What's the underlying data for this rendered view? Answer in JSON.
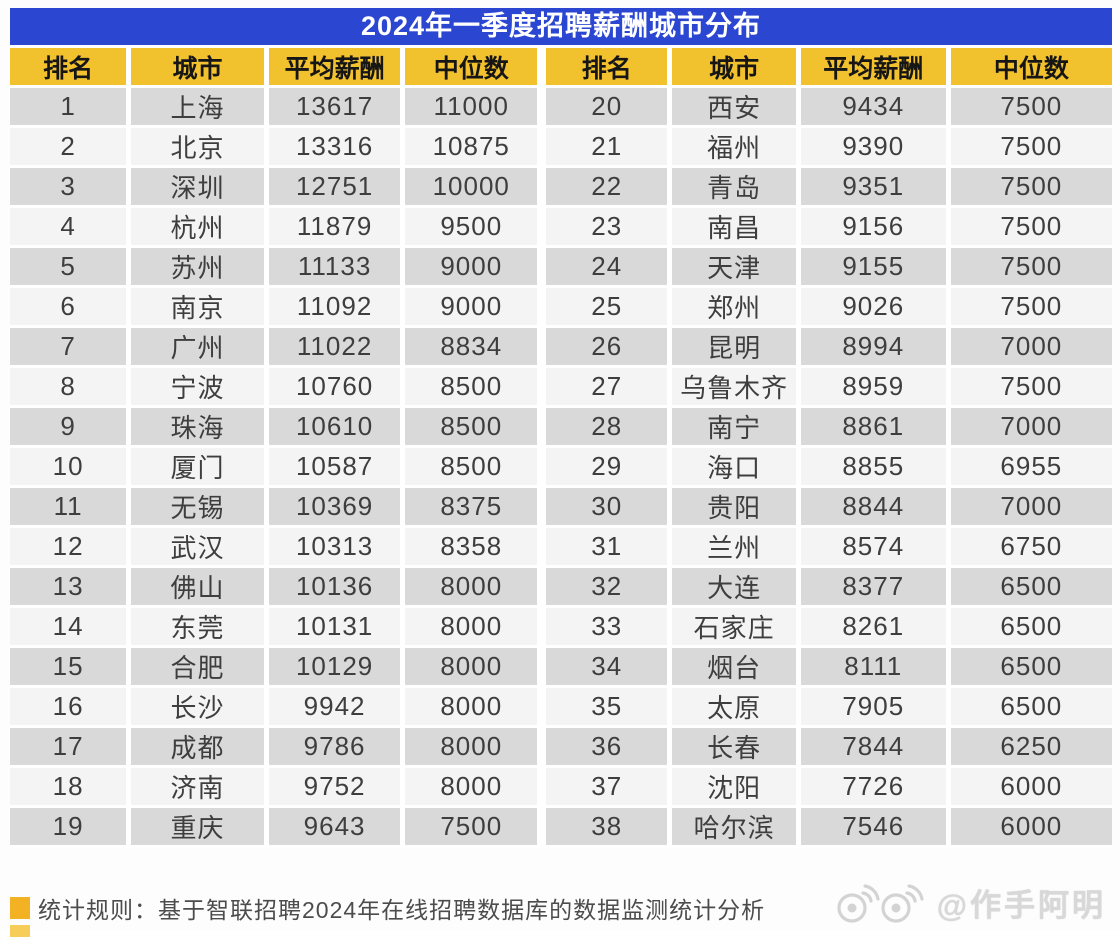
{
  "title": "2024年一季度招聘薪酬城市分布",
  "table": {
    "columns": [
      "排名",
      "城市",
      "平均薪酬",
      "中位数"
    ],
    "rows": [
      {
        "rank": "1",
        "city": "上海",
        "avg": "13617",
        "median": "11000"
      },
      {
        "rank": "2",
        "city": "北京",
        "avg": "13316",
        "median": "10875"
      },
      {
        "rank": "3",
        "city": "深圳",
        "avg": "12751",
        "median": "10000"
      },
      {
        "rank": "4",
        "city": "杭州",
        "avg": "11879",
        "median": "9500"
      },
      {
        "rank": "5",
        "city": "苏州",
        "avg": "11133",
        "median": "9000"
      },
      {
        "rank": "6",
        "city": "南京",
        "avg": "11092",
        "median": "9000"
      },
      {
        "rank": "7",
        "city": "广州",
        "avg": "11022",
        "median": "8834"
      },
      {
        "rank": "8",
        "city": "宁波",
        "avg": "10760",
        "median": "8500"
      },
      {
        "rank": "9",
        "city": "珠海",
        "avg": "10610",
        "median": "8500"
      },
      {
        "rank": "10",
        "city": "厦门",
        "avg": "10587",
        "median": "8500"
      },
      {
        "rank": "11",
        "city": "无锡",
        "avg": "10369",
        "median": "8375"
      },
      {
        "rank": "12",
        "city": "武汉",
        "avg": "10313",
        "median": "8358"
      },
      {
        "rank": "13",
        "city": "佛山",
        "avg": "10136",
        "median": "8000"
      },
      {
        "rank": "14",
        "city": "东莞",
        "avg": "10131",
        "median": "8000"
      },
      {
        "rank": "15",
        "city": "合肥",
        "avg": "10129",
        "median": "8000"
      },
      {
        "rank": "16",
        "city": "长沙",
        "avg": "9942",
        "median": "8000"
      },
      {
        "rank": "17",
        "city": "成都",
        "avg": "9786",
        "median": "8000"
      },
      {
        "rank": "18",
        "city": "济南",
        "avg": "9752",
        "median": "8000"
      },
      {
        "rank": "19",
        "city": "重庆",
        "avg": "9643",
        "median": "7500"
      },
      {
        "rank": "20",
        "city": "西安",
        "avg": "9434",
        "median": "7500"
      },
      {
        "rank": "21",
        "city": "福州",
        "avg": "9390",
        "median": "7500"
      },
      {
        "rank": "22",
        "city": "青岛",
        "avg": "9351",
        "median": "7500"
      },
      {
        "rank": "23",
        "city": "南昌",
        "avg": "9156",
        "median": "7500"
      },
      {
        "rank": "24",
        "city": "天津",
        "avg": "9155",
        "median": "7500"
      },
      {
        "rank": "25",
        "city": "郑州",
        "avg": "9026",
        "median": "7500"
      },
      {
        "rank": "26",
        "city": "昆明",
        "avg": "8994",
        "median": "7000"
      },
      {
        "rank": "27",
        "city": "乌鲁木齐",
        "avg": "8959",
        "median": "7500"
      },
      {
        "rank": "28",
        "city": "南宁",
        "avg": "8861",
        "median": "7000"
      },
      {
        "rank": "29",
        "city": "海口",
        "avg": "8855",
        "median": "6955"
      },
      {
        "rank": "30",
        "city": "贵阳",
        "avg": "8844",
        "median": "7000"
      },
      {
        "rank": "31",
        "city": "兰州",
        "avg": "8574",
        "median": "6750"
      },
      {
        "rank": "32",
        "city": "大连",
        "avg": "8377",
        "median": "6500"
      },
      {
        "rank": "33",
        "city": "石家庄",
        "avg": "8261",
        "median": "6500"
      },
      {
        "rank": "34",
        "city": "烟台",
        "avg": "8111",
        "median": "6500"
      },
      {
        "rank": "35",
        "city": "太原",
        "avg": "7905",
        "median": "6500"
      },
      {
        "rank": "36",
        "city": "长春",
        "avg": "7844",
        "median": "6250"
      },
      {
        "rank": "37",
        "city": "沈阳",
        "avg": "7726",
        "median": "6000"
      },
      {
        "rank": "38",
        "city": "哈尔滨",
        "avg": "7546",
        "median": "6000"
      }
    ]
  },
  "footer": {
    "note": "统计规则：基于智联招聘2024年在线招聘数据库的数据监测统计分析"
  },
  "watermark": {
    "handle": "@作手阿明",
    "icon": "weibo-eyes-icon",
    "ghost_text": "作手阿明"
  },
  "colors": {
    "title_bg": "#2b46d0",
    "header_bg": "#f2c12e",
    "row_odd": "#d9d9d9",
    "row_even": "#f4f4f4",
    "bullet": "#f2b224"
  }
}
